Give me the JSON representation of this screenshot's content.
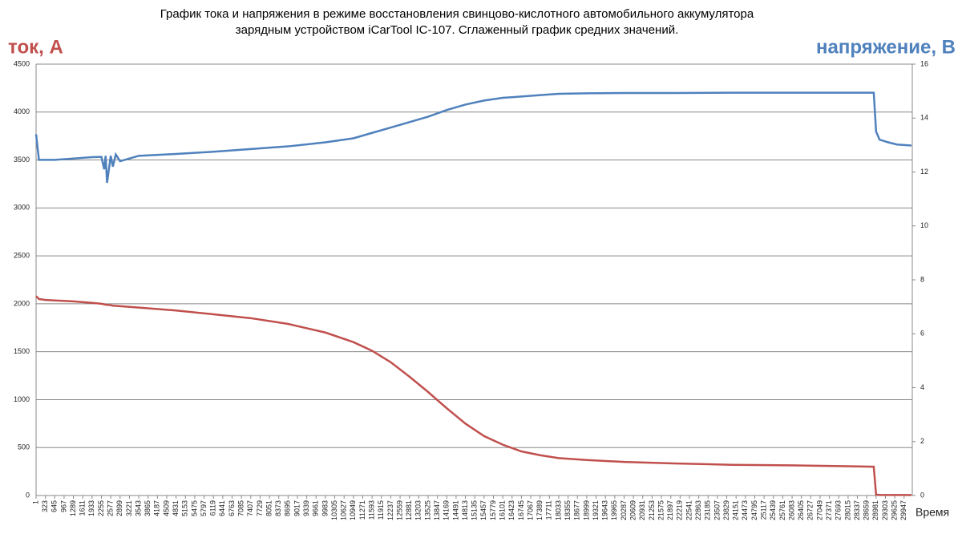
{
  "chart_data": {
    "type": "line",
    "title": [
      "График тока и напряжения в режиме восстановления свинцово-кислотного автомобильного аккумулятора",
      "зарядным устройством iCarTool IC-107. Сглаженный график средних значений."
    ],
    "y_label": "ток, А",
    "y2_label": "напряжение, В",
    "x_label": "Время",
    "x": [
      1,
      100,
      323,
      645,
      1289,
      1933,
      2255,
      2350,
      2400,
      2450,
      2577,
      2650,
      2750,
      2900,
      3543,
      4831,
      6119,
      7407,
      8695,
      9983,
      10949,
      11593,
      12237,
      12881,
      13525,
      14169,
      14813,
      15457,
      16101,
      16745,
      17389,
      18033,
      19000,
      20287,
      22000,
      24000,
      26000,
      28000,
      28900,
      28981,
      29100,
      29400,
      29700,
      30200
    ],
    "series": [
      {
        "name": "ток, А",
        "color": "#c0504d",
        "values": [
          2080,
          2050,
          2040,
          2035,
          2025,
          2010,
          2000,
          1995,
          1990,
          1990,
          1985,
          1980,
          1978,
          1975,
          1960,
          1930,
          1890,
          1850,
          1790,
          1700,
          1600,
          1510,
          1390,
          1240,
          1080,
          910,
          750,
          620,
          530,
          460,
          420,
          390,
          370,
          350,
          335,
          320,
          315,
          305,
          300,
          10,
          5,
          5,
          5,
          5
        ]
      },
      {
        "name": "напряжение, В",
        "color": "#4f81bd",
        "axis": "y2",
        "values": [
          13.4,
          12.45,
          12.45,
          12.45,
          12.5,
          12.55,
          12.56,
          12.1,
          12.6,
          11.6,
          12.6,
          12.2,
          12.65,
          12.4,
          12.6,
          12.67,
          12.75,
          12.85,
          12.95,
          13.1,
          13.25,
          13.45,
          13.65,
          13.85,
          14.05,
          14.3,
          14.5,
          14.65,
          14.75,
          14.8,
          14.85,
          14.9,
          14.92,
          14.93,
          14.93,
          14.94,
          14.94,
          14.94,
          14.94,
          13.5,
          13.2,
          13.1,
          13.02,
          12.98
        ]
      }
    ],
    "xlim": [
      1,
      30230
    ],
    "xticks": [
      1,
      323,
      645,
      967,
      1289,
      1611,
      1933,
      2255,
      2577,
      2899,
      3221,
      3543,
      3865,
      4187,
      4509,
      4831,
      5153,
      5475,
      5797,
      6119,
      6441,
      6763,
      7085,
      7407,
      7729,
      8051,
      8373,
      8695,
      9017,
      9339,
      9661,
      9983,
      10305,
      10627,
      10949,
      11271,
      11593,
      11915,
      12237,
      12559,
      12881,
      13203,
      13525,
      13847,
      14169,
      14491,
      14813,
      15135,
      15457,
      15779,
      16101,
      16423,
      16745,
      17067,
      17389,
      17711,
      18033,
      18355,
      18677,
      18999,
      19321,
      19643,
      19965,
      20287,
      20609,
      20931,
      21253,
      21575,
      21897,
      22219,
      22541,
      22863,
      23185,
      23507,
      23829,
      24151,
      24473,
      24795,
      25117,
      25439,
      25761,
      26083,
      26405,
      26727,
      27049,
      27371,
      27693,
      28015,
      28337,
      28659,
      28981,
      29303,
      29625,
      29947
    ],
    "ylim": [
      0,
      4500
    ],
    "yticks": [
      0,
      500,
      1000,
      1500,
      2000,
      2500,
      3000,
      3500,
      4000,
      4500
    ],
    "y2lim": [
      0,
      16
    ],
    "y2ticks": [
      0,
      2,
      4,
      6,
      8,
      10,
      12,
      14,
      16
    ],
    "grid": true
  }
}
